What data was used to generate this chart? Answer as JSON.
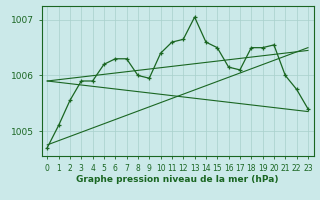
{
  "title": "Graphe pression niveau de la mer (hPa)",
  "background_color": "#cbe9e9",
  "grid_color": "#a8d0cc",
  "line_color": "#1a6622",
  "xlim": [
    -0.5,
    23.5
  ],
  "ylim": [
    1004.55,
    1007.25
  ],
  "yticks": [
    1005,
    1006,
    1007
  ],
  "xticks": [
    0,
    1,
    2,
    3,
    4,
    5,
    6,
    7,
    8,
    9,
    10,
    11,
    12,
    13,
    14,
    15,
    16,
    17,
    18,
    19,
    20,
    21,
    22,
    23
  ],
  "main_series": {
    "x": [
      0,
      1,
      2,
      3,
      4,
      5,
      6,
      7,
      8,
      9,
      10,
      11,
      12,
      13,
      14,
      15,
      16,
      17,
      18,
      19,
      20,
      21,
      22,
      23
    ],
    "y": [
      1004.7,
      1005.1,
      1005.55,
      1005.9,
      1005.9,
      1006.2,
      1006.3,
      1006.3,
      1006.0,
      1005.95,
      1006.4,
      1006.6,
      1006.65,
      1007.05,
      1006.6,
      1006.5,
      1006.15,
      1006.1,
      1006.5,
      1006.5,
      1006.55,
      1006.0,
      1005.75,
      1005.4
    ]
  },
  "trend1": {
    "x": [
      0,
      23
    ],
    "y": [
      1004.75,
      1006.5
    ]
  },
  "trend2": {
    "x": [
      0,
      23
    ],
    "y": [
      1005.9,
      1005.35
    ]
  },
  "trend3": {
    "x": [
      0,
      23
    ],
    "y": [
      1005.9,
      1006.45
    ]
  }
}
